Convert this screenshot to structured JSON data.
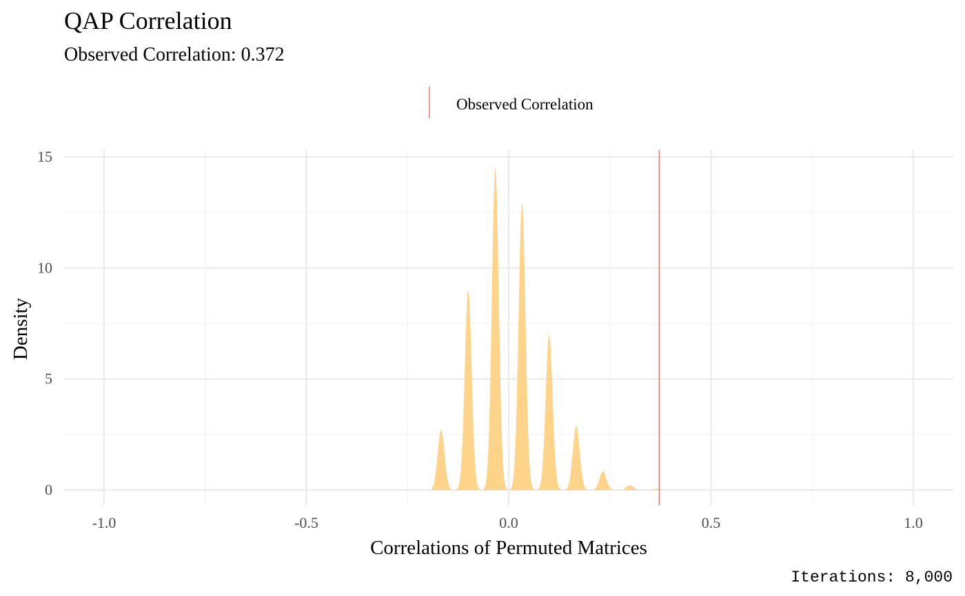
{
  "chart_data": {
    "type": "area",
    "title": "QAP Correlation",
    "subtitle": "Observed Correlation: 0.372",
    "xlabel": "Correlations of Permuted Matrices",
    "ylabel": "Density",
    "caption": "Iterations: 8,000",
    "xlim": [
      -1.1,
      1.1
    ],
    "ylim": [
      -0.7,
      15.3
    ],
    "x_ticks": [
      -1.0,
      -0.5,
      0.0,
      0.5,
      1.0
    ],
    "x_tick_labels": [
      "-1.0",
      "-0.5",
      "0.0",
      "0.5",
      "1.0"
    ],
    "y_ticks": [
      0,
      5,
      10,
      15
    ],
    "y_tick_labels": [
      "0",
      "5",
      "10",
      "15"
    ],
    "grid": true,
    "legend": {
      "position": "top",
      "entries": [
        {
          "label": "Observed Correlation",
          "color": "#f8766d",
          "mark": "vline"
        }
      ]
    },
    "observed_value": 0.372,
    "observed_line_color": "#f8766d",
    "density_fill_color": "#fdd283",
    "density_peaks": [
      {
        "x": -0.167,
        "height": 2.7
      },
      {
        "x": -0.1,
        "height": 9.0
      },
      {
        "x": -0.033,
        "height": 14.5
      },
      {
        "x": 0.033,
        "height": 12.9
      },
      {
        "x": 0.1,
        "height": 7.0
      },
      {
        "x": 0.167,
        "height": 2.9
      },
      {
        "x": 0.233,
        "height": 0.85
      },
      {
        "x": 0.3,
        "height": 0.22
      },
      {
        "x": 0.367,
        "height": 0.06
      }
    ],
    "density_range": [
      -0.19,
      0.41
    ]
  }
}
